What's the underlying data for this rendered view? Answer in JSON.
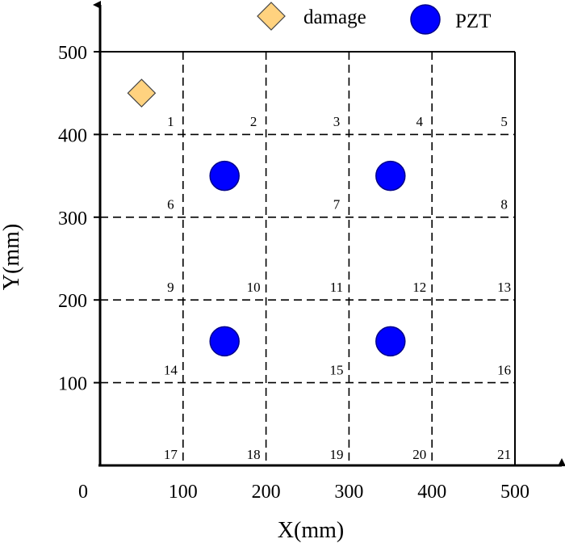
{
  "chart_data": {
    "type": "scatter",
    "xlabel": "X(mm)",
    "ylabel": "Y(mm)",
    "xlim": [
      0,
      500
    ],
    "ylim": [
      0,
      500
    ],
    "xticks": [
      "0",
      "100",
      "200",
      "300",
      "400",
      "500"
    ],
    "yticks": [
      "100",
      "200",
      "300",
      "400",
      "500"
    ],
    "grid_lines_x": [
      100,
      200,
      300,
      400
    ],
    "grid_lines_y": [
      100,
      200,
      300,
      400
    ],
    "legend": [
      {
        "name": "damage",
        "marker": "diamond",
        "color": "#FFD27F"
      },
      {
        "name": "PZT",
        "marker": "circle",
        "color": "#0000FF"
      }
    ],
    "series": [
      {
        "name": "damage",
        "points": [
          {
            "x": 50,
            "y": 450
          }
        ]
      },
      {
        "name": "PZT",
        "points": [
          {
            "x": 150,
            "y": 350
          },
          {
            "x": 350,
            "y": 350
          },
          {
            "x": 150,
            "y": 150
          },
          {
            "x": 350,
            "y": 150
          }
        ]
      }
    ],
    "zone_labels": [
      {
        "text": "1",
        "x": 85,
        "y": 410
      },
      {
        "text": "2",
        "x": 185,
        "y": 410
      },
      {
        "text": "3",
        "x": 285,
        "y": 410
      },
      {
        "text": "4",
        "x": 385,
        "y": 410
      },
      {
        "text": "5",
        "x": 487,
        "y": 410
      },
      {
        "text": "6",
        "x": 85,
        "y": 310
      },
      {
        "text": "7",
        "x": 285,
        "y": 310
      },
      {
        "text": "8",
        "x": 487,
        "y": 310
      },
      {
        "text": "9",
        "x": 85,
        "y": 210
      },
      {
        "text": "10",
        "x": 185,
        "y": 210
      },
      {
        "text": "11",
        "x": 285,
        "y": 210
      },
      {
        "text": "12",
        "x": 385,
        "y": 210
      },
      {
        "text": "13",
        "x": 487,
        "y": 210
      },
      {
        "text": "14",
        "x": 85,
        "y": 110
      },
      {
        "text": "15",
        "x": 285,
        "y": 110
      },
      {
        "text": "16",
        "x": 487,
        "y": 110
      },
      {
        "text": "17",
        "x": 85,
        "y": 8
      },
      {
        "text": "18",
        "x": 185,
        "y": 8
      },
      {
        "text": "19",
        "x": 285,
        "y": 8
      },
      {
        "text": "20",
        "x": 385,
        "y": 8
      },
      {
        "text": "21",
        "x": 487,
        "y": 8
      }
    ]
  }
}
